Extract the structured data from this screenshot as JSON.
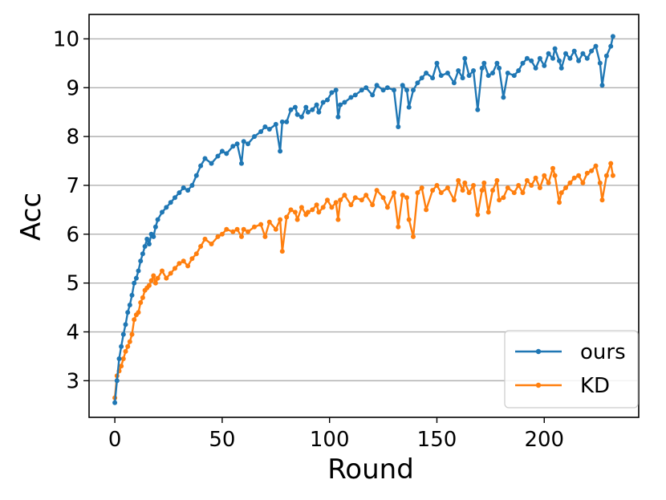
{
  "chart_data": {
    "type": "line",
    "xlabel": "Round",
    "ylabel": "Acc",
    "xlim": [
      -12,
      244
    ],
    "ylim": [
      2.25,
      10.5
    ],
    "xticks": [
      0,
      50,
      100,
      150,
      200
    ],
    "yticks": [
      3,
      4,
      5,
      6,
      7,
      8,
      9,
      10
    ],
    "grid": "horizontal",
    "legend_position": "lower-right",
    "series": [
      {
        "name": "ours",
        "color": "#1f77b4",
        "x": [
          0,
          1,
          2,
          3,
          4,
          5,
          6,
          7,
          8,
          9,
          10,
          11,
          12,
          13,
          14,
          15,
          16,
          17,
          18,
          19,
          20,
          22,
          24,
          26,
          28,
          30,
          32,
          34,
          36,
          38,
          40,
          42,
          45,
          48,
          50,
          52,
          55,
          57,
          59,
          60,
          62,
          65,
          68,
          70,
          72,
          75,
          77,
          78,
          80,
          82,
          84,
          85,
          87,
          89,
          90,
          92,
          94,
          95,
          97,
          99,
          101,
          103,
          104,
          105,
          107,
          110,
          112,
          115,
          117,
          120,
          122,
          125,
          127,
          130,
          132,
          134,
          136,
          137,
          139,
          141,
          143,
          145,
          148,
          150,
          152,
          155,
          158,
          160,
          162,
          163,
          165,
          167,
          169,
          171,
          172,
          174,
          176,
          178,
          179,
          181,
          183,
          186,
          188,
          190,
          192,
          194,
          196,
          198,
          200,
          202,
          204,
          205,
          207,
          208,
          210,
          212,
          214,
          216,
          218,
          220,
          222,
          224,
          226,
          227,
          229,
          231,
          232
        ],
        "values": [
          2.55,
          3.0,
          3.45,
          3.7,
          3.95,
          4.15,
          4.4,
          4.55,
          4.75,
          5.0,
          5.1,
          5.25,
          5.45,
          5.6,
          5.75,
          5.9,
          5.8,
          6.0,
          5.95,
          6.15,
          6.3,
          6.45,
          6.55,
          6.65,
          6.75,
          6.85,
          6.95,
          6.9,
          7.0,
          7.2,
          7.4,
          7.55,
          7.45,
          7.6,
          7.7,
          7.65,
          7.8,
          7.85,
          7.45,
          7.9,
          7.85,
          8.0,
          8.1,
          8.2,
          8.15,
          8.25,
          7.7,
          8.3,
          8.3,
          8.55,
          8.6,
          8.45,
          8.4,
          8.6,
          8.5,
          8.55,
          8.65,
          8.5,
          8.7,
          8.75,
          8.9,
          8.95,
          8.4,
          8.65,
          8.7,
          8.8,
          8.85,
          8.95,
          9.0,
          8.85,
          9.05,
          8.95,
          9.0,
          8.95,
          8.2,
          9.05,
          8.95,
          8.6,
          8.95,
          9.1,
          9.2,
          9.3,
          9.2,
          9.5,
          9.25,
          9.3,
          9.1,
          9.35,
          9.2,
          9.6,
          9.25,
          9.35,
          8.55,
          9.4,
          9.5,
          9.25,
          9.3,
          9.5,
          9.4,
          8.8,
          9.3,
          9.25,
          9.35,
          9.5,
          9.6,
          9.55,
          9.4,
          9.6,
          9.45,
          9.7,
          9.6,
          9.8,
          9.55,
          9.4,
          9.7,
          9.6,
          9.75,
          9.55,
          9.7,
          9.6,
          9.75,
          9.85,
          9.5,
          9.05,
          9.65,
          9.85,
          10.05
        ]
      },
      {
        "name": "KD",
        "color": "#ff7f0e",
        "x": [
          0,
          1,
          2,
          3,
          4,
          5,
          6,
          7,
          8,
          9,
          10,
          11,
          12,
          13,
          14,
          15,
          16,
          17,
          18,
          19,
          20,
          22,
          24,
          26,
          28,
          30,
          32,
          34,
          36,
          38,
          40,
          42,
          45,
          48,
          50,
          52,
          55,
          57,
          59,
          60,
          62,
          65,
          68,
          70,
          72,
          75,
          77,
          78,
          80,
          82,
          84,
          85,
          87,
          89,
          90,
          92,
          94,
          95,
          97,
          99,
          101,
          103,
          104,
          105,
          107,
          110,
          112,
          115,
          117,
          120,
          122,
          125,
          127,
          130,
          132,
          134,
          136,
          137,
          139,
          141,
          143,
          145,
          148,
          150,
          152,
          155,
          158,
          160,
          162,
          163,
          165,
          167,
          169,
          171,
          172,
          174,
          176,
          178,
          179,
          181,
          183,
          186,
          188,
          190,
          192,
          194,
          196,
          198,
          200,
          202,
          204,
          205,
          207,
          208,
          210,
          212,
          214,
          216,
          218,
          220,
          222,
          224,
          226,
          227,
          229,
          231,
          232
        ],
        "values": [
          2.65,
          3.1,
          3.2,
          3.3,
          3.45,
          3.6,
          3.7,
          3.8,
          3.95,
          4.25,
          4.35,
          4.4,
          4.6,
          4.7,
          4.85,
          4.9,
          4.95,
          5.05,
          5.15,
          5.0,
          5.1,
          5.25,
          5.1,
          5.2,
          5.3,
          5.4,
          5.45,
          5.35,
          5.5,
          5.6,
          5.75,
          5.9,
          5.8,
          5.95,
          6.0,
          6.1,
          6.05,
          6.1,
          5.95,
          6.1,
          6.05,
          6.15,
          6.2,
          5.95,
          6.25,
          6.1,
          6.3,
          5.65,
          6.35,
          6.5,
          6.45,
          6.3,
          6.55,
          6.4,
          6.45,
          6.5,
          6.6,
          6.45,
          6.55,
          6.7,
          6.55,
          6.65,
          6.3,
          6.7,
          6.8,
          6.6,
          6.75,
          6.7,
          6.8,
          6.6,
          6.9,
          6.75,
          6.55,
          6.85,
          6.15,
          6.8,
          6.75,
          6.3,
          5.95,
          6.85,
          6.95,
          6.5,
          6.9,
          7.0,
          6.85,
          6.95,
          6.7,
          7.1,
          6.9,
          7.05,
          6.85,
          7.0,
          6.4,
          6.9,
          7.05,
          6.45,
          6.9,
          7.1,
          6.7,
          6.75,
          6.95,
          6.85,
          7.0,
          6.85,
          7.1,
          7.0,
          7.15,
          6.95,
          7.2,
          7.05,
          7.35,
          7.2,
          6.65,
          6.85,
          6.95,
          7.05,
          7.15,
          7.2,
          7.05,
          7.25,
          7.3,
          7.4,
          7.05,
          6.7,
          7.2,
          7.45,
          7.2
        ]
      }
    ]
  }
}
